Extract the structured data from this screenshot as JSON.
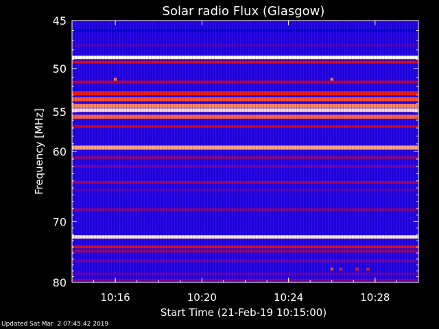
{
  "chart_data": {
    "type": "heatmap",
    "title": "Solar radio Flux (Glasgow)",
    "xlabel": "Start Time (21-Feb-19 10:15:00)",
    "ylabel": "Frequency [MHz]",
    "x_unit": "time (HH:MM)",
    "xlim": [
      "10:14:00",
      "10:30:00"
    ],
    "ylim": [
      45,
      80
    ],
    "y_reversed": true,
    "y_scale": "log",
    "x_ticks": [
      "10:16",
      "10:20",
      "10:24",
      "10:28"
    ],
    "y_ticks": [
      45,
      50,
      55,
      60,
      70,
      80
    ],
    "colormap": [
      "#000060",
      "#0000ff",
      "#6a00b0",
      "#cc0020",
      "#ff2200",
      "#ffb090",
      "#ffffff"
    ],
    "background_intensity": 0.22,
    "bands": [
      {
        "freq_mhz": 46.0,
        "intensity": 0.12
      },
      {
        "freq_mhz": 47.5,
        "intensity": 0.28
      },
      {
        "freq_mhz": 48.8,
        "intensity": 1.0
      },
      {
        "freq_mhz": 49.3,
        "intensity": 0.55
      },
      {
        "freq_mhz": 51.5,
        "intensity": 0.45
      },
      {
        "freq_mhz": 52.8,
        "intensity": 0.62
      },
      {
        "freq_mhz": 53.5,
        "intensity": 0.72
      },
      {
        "freq_mhz": 54.3,
        "intensity": 0.78
      },
      {
        "freq_mhz": 54.8,
        "intensity": 0.92
      },
      {
        "freq_mhz": 55.6,
        "intensity": 0.74
      },
      {
        "freq_mhz": 56.8,
        "intensity": 0.5
      },
      {
        "freq_mhz": 59.5,
        "intensity": 0.82
      },
      {
        "freq_mhz": 60.8,
        "intensity": 0.38
      },
      {
        "freq_mhz": 62.0,
        "intensity": 0.34
      },
      {
        "freq_mhz": 64.2,
        "intensity": 0.42
      },
      {
        "freq_mhz": 65.3,
        "intensity": 0.3
      },
      {
        "freq_mhz": 68.2,
        "intensity": 0.36
      },
      {
        "freq_mhz": 72.4,
        "intensity": 0.95
      },
      {
        "freq_mhz": 74.0,
        "intensity": 0.55
      },
      {
        "freq_mhz": 74.7,
        "intensity": 0.4
      },
      {
        "freq_mhz": 76.3,
        "intensity": 0.34
      },
      {
        "freq_mhz": 78.5,
        "intensity": 0.3
      },
      {
        "freq_mhz": 79.6,
        "intensity": 0.36
      }
    ],
    "events": [
      {
        "time": "10:16:00",
        "freq_mhz": 51.2,
        "intensity": 0.78
      },
      {
        "time": "10:26:00",
        "freq_mhz": 51.2,
        "intensity": 0.78
      },
      {
        "time": "10:26:00",
        "freq_mhz": 77.7,
        "intensity": 0.72
      },
      {
        "time": "10:26:25",
        "freq_mhz": 77.7,
        "intensity": 0.65
      },
      {
        "time": "10:27:10",
        "freq_mhz": 77.7,
        "intensity": 0.62
      },
      {
        "time": "10:27:40",
        "freq_mhz": 77.7,
        "intensity": 0.62
      }
    ],
    "grid": false,
    "legend": "none"
  },
  "footer": {
    "updated_text": "Updated Sat Mar  2 07:45:42 2019"
  }
}
